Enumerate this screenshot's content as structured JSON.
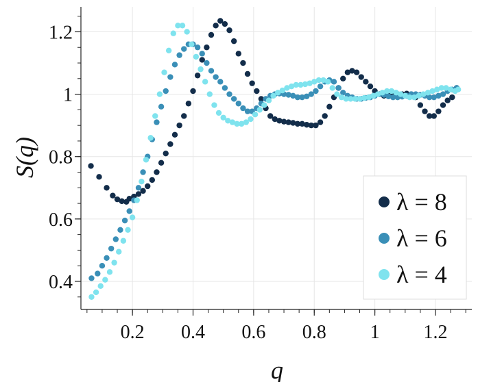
{
  "chart_data": {
    "type": "scatter",
    "title": "",
    "xlabel": "q",
    "ylabel": "S(q)",
    "xlim": [
      0.03,
      1.32
    ],
    "ylim": [
      0.31,
      1.28
    ],
    "grid": true,
    "legend_position": "bottom-right",
    "x_ticks": [
      {
        "value": 0.2,
        "label": "0.2"
      },
      {
        "value": 0.4,
        "label": "0.4"
      },
      {
        "value": 0.6,
        "label": "0.6"
      },
      {
        "value": 0.8,
        "label": "0.8"
      },
      {
        "value": 1.0,
        "label": "1"
      },
      {
        "value": 1.2,
        "label": "1.2"
      }
    ],
    "y_ticks": [
      {
        "value": 0.4,
        "label": "0.4"
      },
      {
        "value": 0.6,
        "label": "0.6"
      },
      {
        "value": 0.8,
        "label": "0.8"
      },
      {
        "value": 1.0,
        "label": "1"
      },
      {
        "value": 1.2,
        "label": "1.2"
      }
    ],
    "series": [
      {
        "name": "λ = 8",
        "label": "λ = 8",
        "color": "#132d4a",
        "points": [
          [
            0.063,
            0.77
          ],
          [
            0.09,
            0.735
          ],
          [
            0.115,
            0.7
          ],
          [
            0.135,
            0.675
          ],
          [
            0.15,
            0.663
          ],
          [
            0.165,
            0.657
          ],
          [
            0.18,
            0.655
          ],
          [
            0.19,
            0.665
          ],
          [
            0.205,
            0.672
          ],
          [
            0.22,
            0.68
          ],
          [
            0.235,
            0.69
          ],
          [
            0.25,
            0.705
          ],
          [
            0.265,
            0.725
          ],
          [
            0.28,
            0.75
          ],
          [
            0.295,
            0.78
          ],
          [
            0.31,
            0.81
          ],
          [
            0.325,
            0.84
          ],
          [
            0.34,
            0.87
          ],
          [
            0.355,
            0.9
          ],
          [
            0.37,
            0.93
          ],
          [
            0.385,
            0.97
          ],
          [
            0.4,
            1.01
          ],
          [
            0.415,
            1.06
          ],
          [
            0.43,
            1.11
          ],
          [
            0.445,
            1.15
          ],
          [
            0.46,
            1.19
          ],
          [
            0.475,
            1.22
          ],
          [
            0.49,
            1.235
          ],
          [
            0.505,
            1.225
          ],
          [
            0.52,
            1.205
          ],
          [
            0.535,
            1.17
          ],
          [
            0.55,
            1.13
          ],
          [
            0.565,
            1.1
          ],
          [
            0.58,
            1.065
          ],
          [
            0.595,
            1.035
          ],
          [
            0.61,
            1.01
          ],
          [
            0.625,
            0.985
          ],
          [
            0.64,
            0.955
          ],
          [
            0.655,
            0.93
          ],
          [
            0.67,
            0.92
          ],
          [
            0.685,
            0.915
          ],
          [
            0.7,
            0.912
          ],
          [
            0.715,
            0.91
          ],
          [
            0.73,
            0.908
          ],
          [
            0.745,
            0.905
          ],
          [
            0.76,
            0.905
          ],
          [
            0.775,
            0.902
          ],
          [
            0.79,
            0.9
          ],
          [
            0.805,
            0.9
          ],
          [
            0.82,
            0.91
          ],
          [
            0.835,
            0.93
          ],
          [
            0.85,
            0.96
          ],
          [
            0.865,
            0.99
          ],
          [
            0.88,
            1.02
          ],
          [
            0.895,
            1.05
          ],
          [
            0.91,
            1.07
          ],
          [
            0.925,
            1.075
          ],
          [
            0.94,
            1.07
          ],
          [
            0.955,
            1.055
          ],
          [
            0.97,
            1.04
          ],
          [
            0.985,
            1.025
          ],
          [
            1.0,
            1.01
          ],
          [
            1.015,
            1.0
          ],
          [
            1.03,
            0.995
          ],
          [
            1.045,
            0.995
          ],
          [
            1.06,
            0.998
          ],
          [
            1.075,
            1.0
          ],
          [
            1.09,
            1.0
          ],
          [
            1.105,
            1.002
          ],
          [
            1.12,
            1.0
          ],
          [
            1.135,
            0.99
          ],
          [
            1.15,
            0.965
          ],
          [
            1.165,
            0.945
          ],
          [
            1.18,
            0.93
          ],
          [
            1.195,
            0.93
          ],
          [
            1.21,
            0.945
          ],
          [
            1.225,
            0.965
          ],
          [
            1.24,
            0.98
          ],
          [
            1.255,
            0.99
          ],
          [
            1.27,
            1.02
          ]
        ]
      },
      {
        "name": "λ = 6",
        "label": "λ = 6",
        "color": "#3a8fb7",
        "points": [
          [
            0.065,
            0.41
          ],
          [
            0.085,
            0.425
          ],
          [
            0.1,
            0.45
          ],
          [
            0.115,
            0.475
          ],
          [
            0.13,
            0.505
          ],
          [
            0.145,
            0.535
          ],
          [
            0.16,
            0.565
          ],
          [
            0.175,
            0.595
          ],
          [
            0.19,
            0.625
          ],
          [
            0.205,
            0.66
          ],
          [
            0.22,
            0.7
          ],
          [
            0.235,
            0.75
          ],
          [
            0.25,
            0.8
          ],
          [
            0.265,
            0.855
          ],
          [
            0.28,
            0.91
          ],
          [
            0.295,
            0.96
          ],
          [
            0.31,
            1.01
          ],
          [
            0.325,
            1.055
          ],
          [
            0.34,
            1.095
          ],
          [
            0.355,
            1.125
          ],
          [
            0.37,
            1.145
          ],
          [
            0.385,
            1.16
          ],
          [
            0.4,
            1.16
          ],
          [
            0.415,
            1.15
          ],
          [
            0.43,
            1.13
          ],
          [
            0.445,
            1.1
          ],
          [
            0.46,
            1.075
          ],
          [
            0.475,
            1.055
          ],
          [
            0.49,
            1.04
          ],
          [
            0.505,
            1.02
          ],
          [
            0.52,
            1.0
          ],
          [
            0.535,
            0.985
          ],
          [
            0.55,
            0.97
          ],
          [
            0.565,
            0.955
          ],
          [
            0.58,
            0.945
          ],
          [
            0.595,
            0.945
          ],
          [
            0.61,
            0.955
          ],
          [
            0.625,
            0.97
          ],
          [
            0.64,
            0.985
          ],
          [
            0.655,
            0.995
          ],
          [
            0.67,
            1.0
          ],
          [
            0.685,
            1.002
          ],
          [
            0.7,
            1.0
          ],
          [
            0.715,
            0.998
          ],
          [
            0.73,
            0.995
          ],
          [
            0.745,
            0.99
          ],
          [
            0.76,
            0.99
          ],
          [
            0.775,
            0.993
          ],
          [
            0.79,
            1.0
          ],
          [
            0.805,
            1.01
          ],
          [
            0.82,
            1.025
          ],
          [
            0.835,
            1.04
          ],
          [
            0.85,
            1.045
          ],
          [
            0.865,
            1.04
          ],
          [
            0.88,
            1.02
          ],
          [
            0.895,
            1.005
          ],
          [
            0.91,
            0.995
          ],
          [
            0.925,
            0.99
          ],
          [
            0.94,
            0.985
          ],
          [
            0.955,
            0.985
          ],
          [
            0.97,
            0.988
          ],
          [
            0.985,
            0.99
          ],
          [
            1.0,
            0.995
          ],
          [
            1.015,
            1.0
          ],
          [
            1.03,
            0.998
          ],
          [
            1.045,
            0.993
          ],
          [
            1.06,
            0.99
          ],
          [
            1.075,
            0.99
          ],
          [
            1.09,
            0.992
          ],
          [
            1.105,
            0.995
          ],
          [
            1.12,
            1.0
          ],
          [
            1.135,
            1.0
          ],
          [
            1.15,
            0.998
          ],
          [
            1.165,
            0.995
          ],
          [
            1.18,
            0.99
          ],
          [
            1.195,
            0.99
          ],
          [
            1.21,
            0.995
          ],
          [
            1.225,
            1.0
          ],
          [
            1.24,
            1.01
          ],
          [
            1.255,
            1.015
          ],
          [
            1.27,
            1.02
          ]
        ]
      },
      {
        "name": "λ = 4",
        "label": "λ = 4",
        "color": "#7fe3ee",
        "points": [
          [
            0.065,
            0.35
          ],
          [
            0.08,
            0.365
          ],
          [
            0.095,
            0.385
          ],
          [
            0.11,
            0.405
          ],
          [
            0.125,
            0.43
          ],
          [
            0.14,
            0.46
          ],
          [
            0.155,
            0.495
          ],
          [
            0.17,
            0.53
          ],
          [
            0.185,
            0.565
          ],
          [
            0.2,
            0.605
          ],
          [
            0.215,
            0.66
          ],
          [
            0.23,
            0.72
          ],
          [
            0.245,
            0.79
          ],
          [
            0.26,
            0.86
          ],
          [
            0.275,
            0.93
          ],
          [
            0.29,
            1.0
          ],
          [
            0.305,
            1.07
          ],
          [
            0.32,
            1.14
          ],
          [
            0.335,
            1.195
          ],
          [
            0.35,
            1.22
          ],
          [
            0.365,
            1.22
          ],
          [
            0.38,
            1.2
          ],
          [
            0.395,
            1.16
          ],
          [
            0.41,
            1.12
          ],
          [
            0.425,
            1.08
          ],
          [
            0.44,
            1.04
          ],
          [
            0.455,
            1.0
          ],
          [
            0.47,
            0.965
          ],
          [
            0.485,
            0.94
          ],
          [
            0.5,
            0.925
          ],
          [
            0.515,
            0.915
          ],
          [
            0.53,
            0.91
          ],
          [
            0.545,
            0.905
          ],
          [
            0.56,
            0.905
          ],
          [
            0.575,
            0.91
          ],
          [
            0.59,
            0.92
          ],
          [
            0.605,
            0.935
          ],
          [
            0.62,
            0.95
          ],
          [
            0.635,
            0.965
          ],
          [
            0.65,
            0.98
          ],
          [
            0.665,
            0.995
          ],
          [
            0.68,
            1.005
          ],
          [
            0.695,
            1.012
          ],
          [
            0.71,
            1.02
          ],
          [
            0.725,
            1.025
          ],
          [
            0.74,
            1.03
          ],
          [
            0.755,
            1.03
          ],
          [
            0.77,
            1.032
          ],
          [
            0.785,
            1.035
          ],
          [
            0.8,
            1.04
          ],
          [
            0.815,
            1.045
          ],
          [
            0.83,
            1.045
          ],
          [
            0.845,
            1.04
          ],
          [
            0.86,
            1.02
          ],
          [
            0.875,
            1.0
          ],
          [
            0.89,
            0.99
          ],
          [
            0.905,
            0.985
          ],
          [
            0.92,
            0.985
          ],
          [
            0.935,
            0.985
          ],
          [
            0.95,
            0.985
          ],
          [
            0.965,
            0.988
          ],
          [
            0.98,
            0.99
          ],
          [
            0.995,
            0.995
          ],
          [
            1.01,
            1.0
          ],
          [
            1.025,
            1.005
          ],
          [
            1.04,
            1.01
          ],
          [
            1.055,
            1.01
          ],
          [
            1.07,
            1.005
          ],
          [
            1.085,
            1.0
          ],
          [
            1.1,
            0.995
          ],
          [
            1.115,
            0.99
          ],
          [
            1.13,
            0.99
          ],
          [
            1.145,
            0.995
          ],
          [
            1.16,
            1.0
          ],
          [
            1.175,
            1.005
          ],
          [
            1.19,
            1.01
          ],
          [
            1.205,
            1.015
          ],
          [
            1.22,
            1.02
          ],
          [
            1.235,
            1.02
          ],
          [
            1.25,
            1.015
          ],
          [
            1.265,
            1.01
          ],
          [
            1.275,
            1.015
          ]
        ]
      }
    ]
  }
}
